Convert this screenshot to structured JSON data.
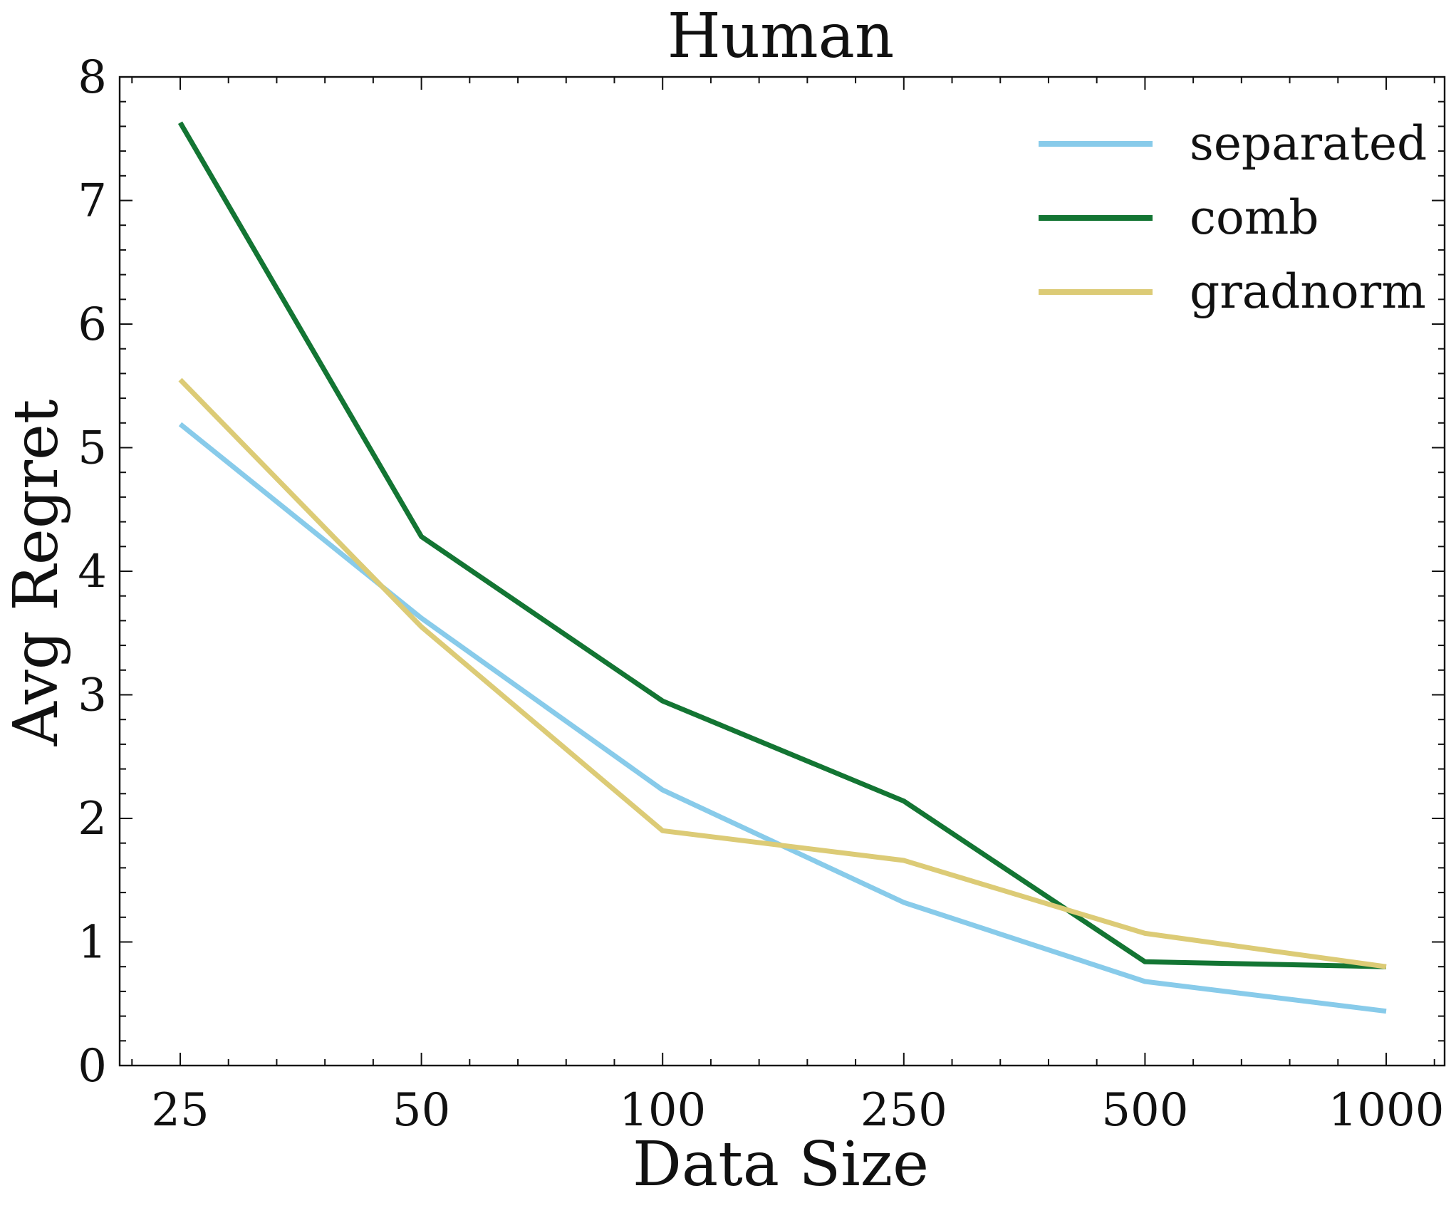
{
  "chart_data": {
    "type": "line",
    "title": "Human",
    "xlabel": "Data Size",
    "ylabel": "Avg Regret",
    "categories": [
      "25",
      "50",
      "100",
      "250",
      "500",
      "1000"
    ],
    "ylim": [
      0,
      8
    ],
    "yticks": [
      "0",
      "1",
      "2",
      "3",
      "4",
      "5",
      "6",
      "7",
      "8"
    ],
    "grid": false,
    "legend_position": "top-right",
    "series": [
      {
        "name": "separated",
        "color": "#88cbea",
        "values": [
          5.19,
          3.62,
          2.23,
          1.32,
          0.68,
          0.44
        ]
      },
      {
        "name": "comb",
        "color": "#137533",
        "values": [
          7.63,
          4.28,
          2.95,
          2.14,
          0.84,
          0.8
        ]
      },
      {
        "name": "gradnorm",
        "color": "#dccb76",
        "values": [
          5.55,
          3.55,
          1.9,
          1.66,
          1.07,
          0.8
        ]
      }
    ]
  }
}
